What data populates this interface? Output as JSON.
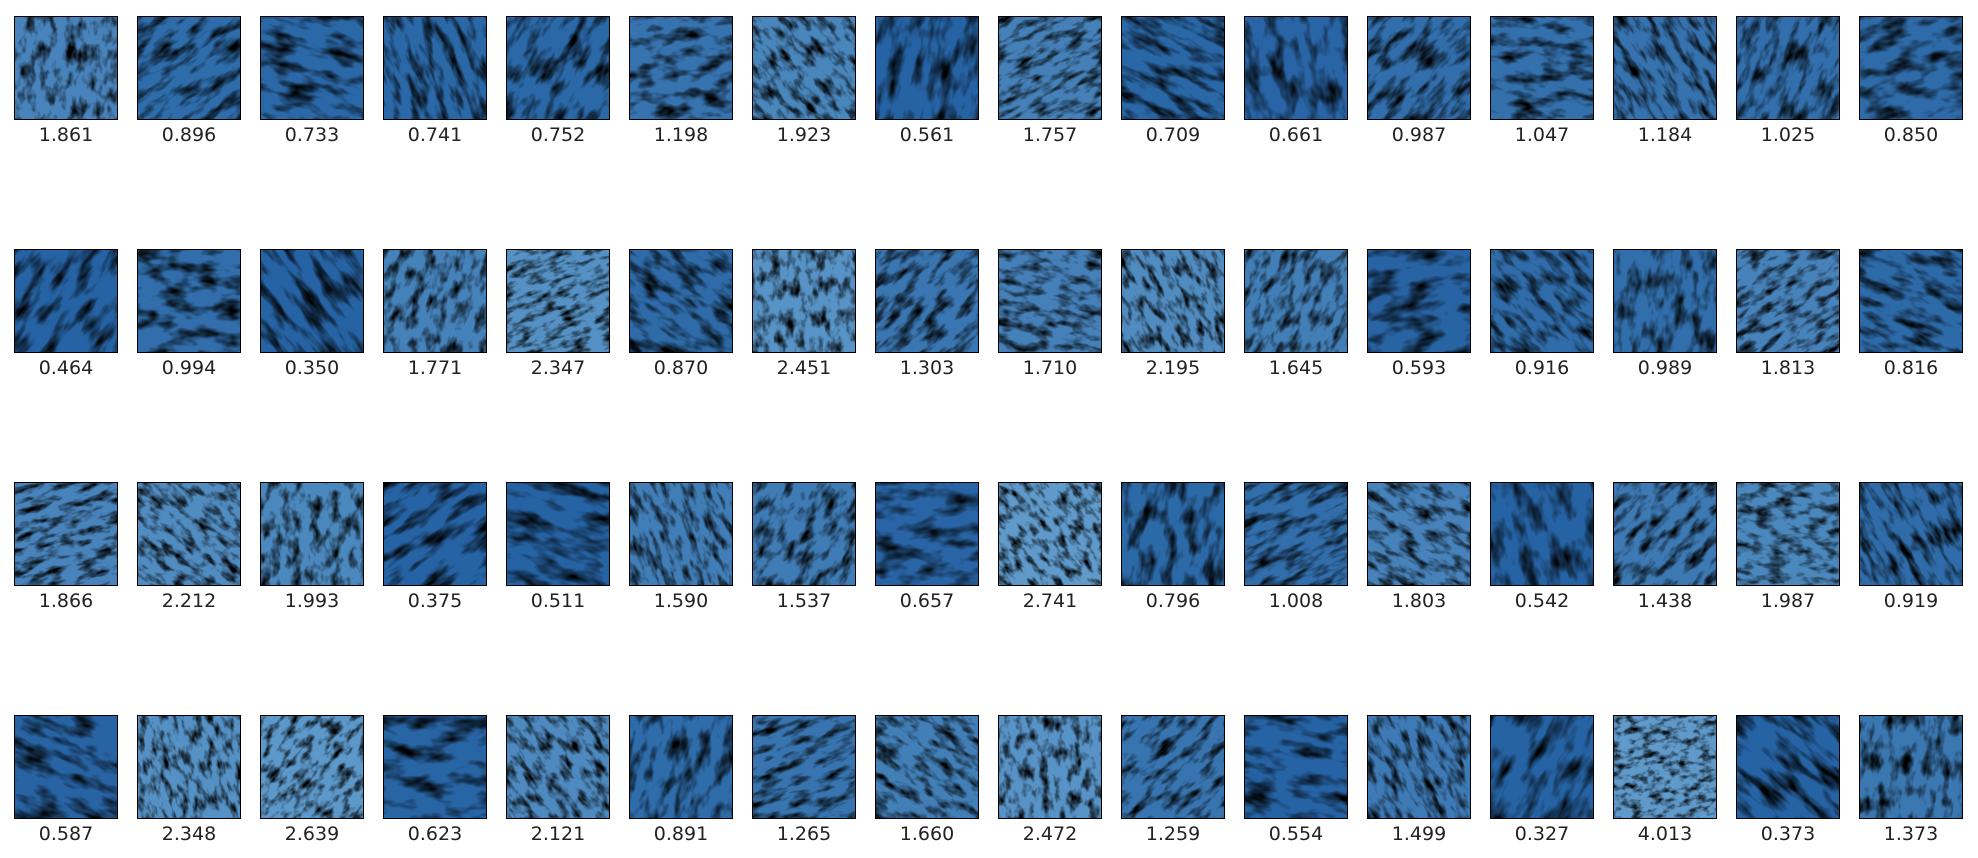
{
  "colormap": {
    "name": "Blues",
    "light": "#f0f6fc",
    "mid": "#6aa5d3",
    "dark": "#1f5c9e",
    "frame": "#000000",
    "text": "#222222"
  },
  "rows": [
    [
      "1.861",
      "0.896",
      "0.733",
      "0.741",
      "0.752",
      "1.198",
      "1.923",
      "0.561",
      "1.757",
      "0.709",
      "0.661",
      "0.987",
      "1.047",
      "1.184",
      "1.025",
      "0.850"
    ],
    [
      "0.464",
      "0.994",
      "0.350",
      "1.771",
      "2.347",
      "0.870",
      "2.451",
      "1.303",
      "1.710",
      "2.195",
      "1.645",
      "0.593",
      "0.916",
      "0.989",
      "1.813",
      "0.816"
    ],
    [
      "1.866",
      "2.212",
      "1.993",
      "0.375",
      "0.511",
      "1.590",
      "1.537",
      "0.657",
      "2.741",
      "0.796",
      "1.008",
      "1.803",
      "0.542",
      "1.438",
      "1.987",
      "0.919"
    ],
    [
      "0.587",
      "2.348",
      "2.639",
      "0.623",
      "2.121",
      "0.891",
      "1.265",
      "1.660",
      "2.472",
      "1.259",
      "0.554",
      "1.499",
      "0.327",
      "4.013",
      "0.373",
      "1.373"
    ]
  ]
}
